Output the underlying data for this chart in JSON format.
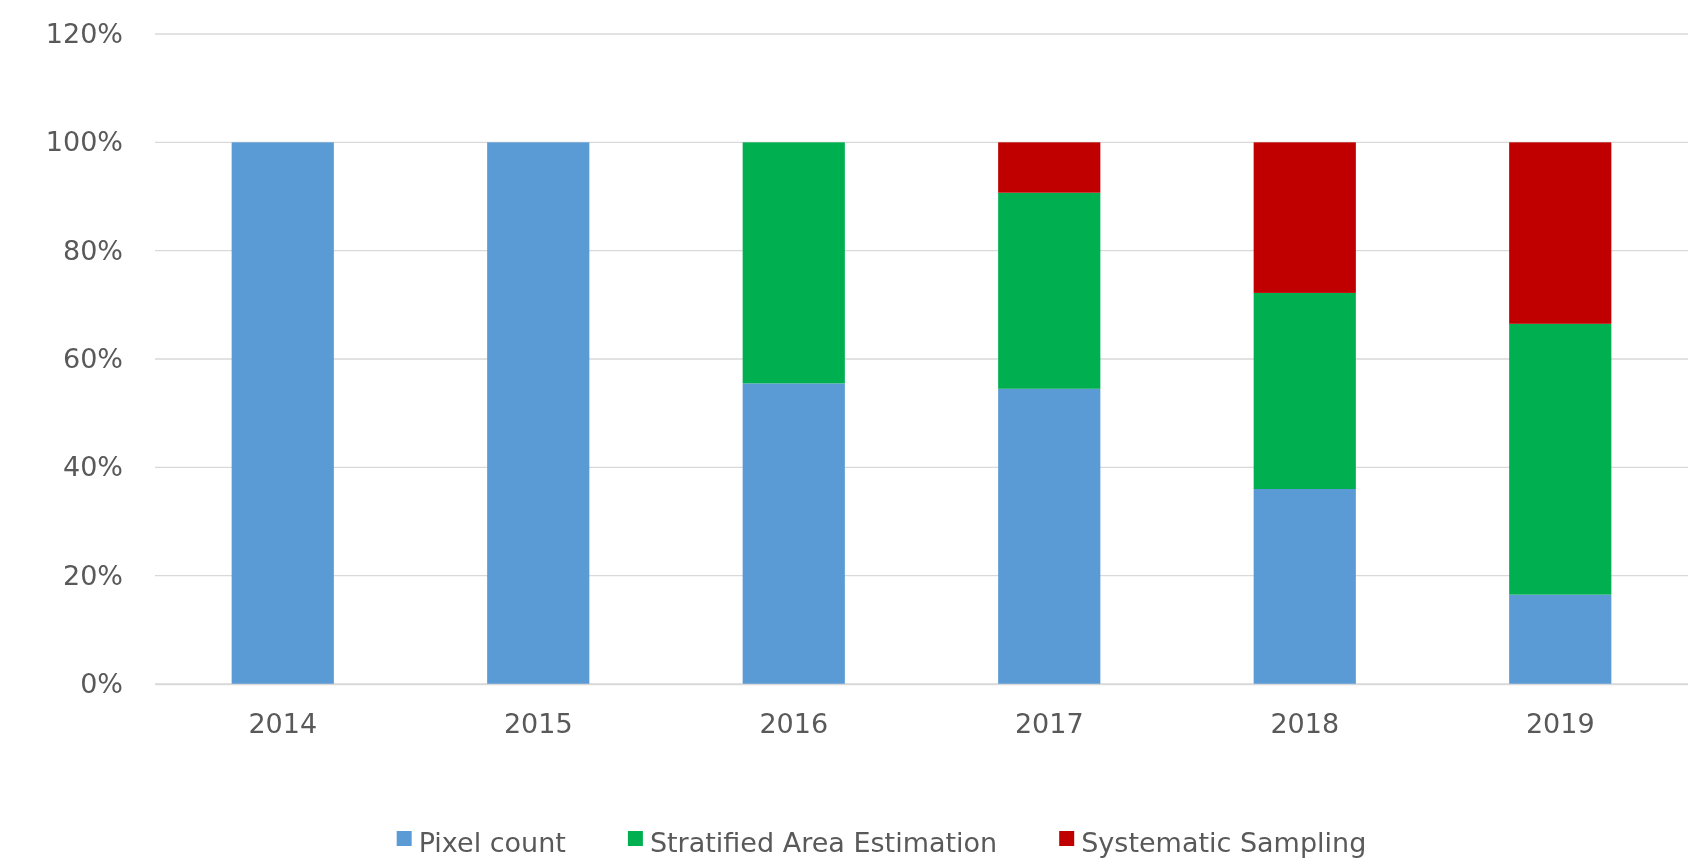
{
  "chart_data": {
    "type": "bar",
    "stacked": true,
    "categories": [
      "2014",
      "2015",
      "2016",
      "2017",
      "2018",
      "2019"
    ],
    "series": [
      {
        "name": "Pixel count",
        "color": "#5b9bd5",
        "values": [
          100,
          100,
          55.5,
          54.5,
          36,
          16.5
        ]
      },
      {
        "name": "Stratified Area Estimation",
        "color": "#00b050",
        "values": [
          0,
          0,
          44.5,
          36.2,
          36.2,
          50
        ]
      },
      {
        "name": "Systematic Sampling",
        "color": "#c00000",
        "values": [
          0,
          0,
          0,
          9.3,
          27.8,
          33.5
        ]
      }
    ],
    "ylim": [
      0,
      120
    ],
    "yticks": [
      {
        "value": 0,
        "label": "0%"
      },
      {
        "value": 20,
        "label": "20%"
      },
      {
        "value": 40,
        "label": "40%"
      },
      {
        "value": 60,
        "label": "60%"
      },
      {
        "value": 80,
        "label": "80%"
      },
      {
        "value": 100,
        "label": "100%"
      },
      {
        "value": 120,
        "label": "120%"
      }
    ],
    "grid": "y",
    "legend": "bottom"
  }
}
